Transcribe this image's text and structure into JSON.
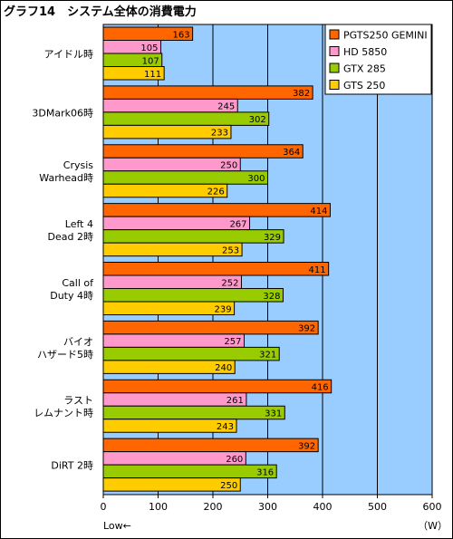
{
  "chart_data": {
    "type": "bar",
    "orientation": "horizontal",
    "title": "グラフ14　システム全体の消費電力",
    "categories": [
      [
        "アイドル時"
      ],
      [
        "3DMark06時"
      ],
      [
        "Crysis",
        "Warhead時"
      ],
      [
        "Left 4",
        "Dead 2時"
      ],
      [
        "Call of",
        "Duty 4時"
      ],
      [
        "バイオ",
        "ハザード5時"
      ],
      [
        "ラスト",
        "レムナント時"
      ],
      [
        "DiRT 2時"
      ]
    ],
    "series": [
      {
        "name": "PGTS250 GEMINI",
        "color": "#FF6600",
        "values": [
          163,
          382,
          364,
          414,
          411,
          392,
          416,
          392
        ]
      },
      {
        "name": "HD 5850",
        "color": "#FF99CC",
        "values": [
          105,
          245,
          250,
          267,
          252,
          257,
          261,
          260
        ]
      },
      {
        "name": "GTX 285",
        "color": "#99CC00",
        "values": [
          107,
          302,
          300,
          329,
          328,
          321,
          331,
          316
        ]
      },
      {
        "name": "GTS 250",
        "color": "#FFCC00",
        "values": [
          111,
          233,
          226,
          253,
          239,
          240,
          243,
          250
        ]
      }
    ],
    "xlim": [
      0,
      600
    ],
    "xticks": [
      0,
      100,
      200,
      300,
      400,
      500,
      600
    ],
    "xlabel": "",
    "unit_label": "（W）",
    "low_label": "Low←",
    "plot_background": "#99CCFF",
    "grid": true,
    "legend": "top-right"
  }
}
